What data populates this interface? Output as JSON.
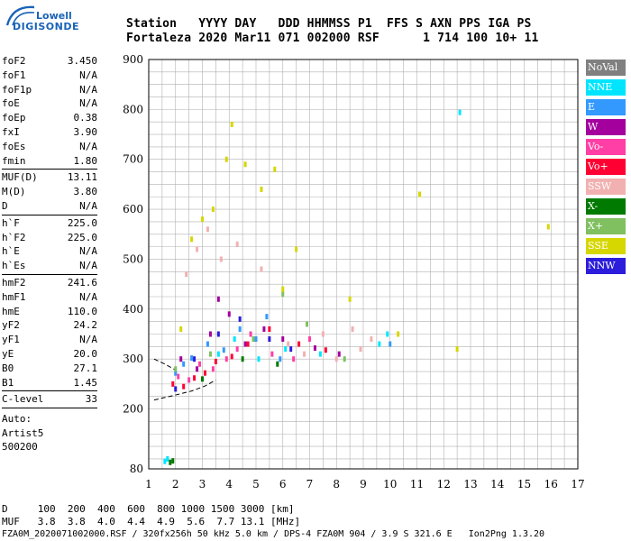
{
  "logo": {
    "line1": "Lowell",
    "line2": "DIGISONDE"
  },
  "header": {
    "line1": "Station   YYYY DAY   DDD HHMMSS P1  FFS S AXN PPS IGA PS",
    "line2": "Fortaleza 2020 Mar11 071 002000 RSF      1 714 100 10+ 11"
  },
  "params": {
    "group1": [
      {
        "name": "foF2",
        "value": "3.450"
      },
      {
        "name": "foF1",
        "value": "N/A"
      },
      {
        "name": "foF1p",
        "value": "N/A"
      },
      {
        "name": "foE",
        "value": "N/A"
      },
      {
        "name": "foEp",
        "value": "0.38"
      },
      {
        "name": "fxI",
        "value": "3.90"
      },
      {
        "name": "foEs",
        "value": "N/A"
      },
      {
        "name": "fmin",
        "value": "1.80"
      }
    ],
    "group2": [
      {
        "name": "MUF(D)",
        "value": "13.11"
      },
      {
        "name": "M(D)",
        "value": "3.80"
      },
      {
        "name": "D",
        "value": "N/A"
      }
    ],
    "group3": [
      {
        "name": "h`F",
        "value": "225.0"
      },
      {
        "name": "h`F2",
        "value": "225.0"
      },
      {
        "name": "h`E",
        "value": "N/A"
      },
      {
        "name": "h`Es",
        "value": "N/A"
      }
    ],
    "group4": [
      {
        "name": "hmF2",
        "value": "241.6"
      },
      {
        "name": "hmF1",
        "value": "N/A"
      },
      {
        "name": "hmE",
        "value": "110.0"
      },
      {
        "name": "yF2",
        "value": "24.2"
      },
      {
        "name": "yF1",
        "value": "N/A"
      },
      {
        "name": "yE",
        "value": "20.0"
      },
      {
        "name": "B0",
        "value": "27.1"
      },
      {
        "name": "B1",
        "value": "1.45"
      }
    ],
    "group5": [
      {
        "name": "C-level",
        "value": "33"
      }
    ]
  },
  "misc": {
    "auto": "Auto:",
    "artist": "Artist5",
    "code": "500200"
  },
  "legend": [
    {
      "label": "NoVal",
      "color": "#808080"
    },
    {
      "label": "NNE",
      "color": "#00e5ff"
    },
    {
      "label": "E",
      "color": "#3399ff"
    },
    {
      "label": "W",
      "color": "#a3009e"
    },
    {
      "label": "Vo-",
      "color": "#ff3fa5"
    },
    {
      "label": "Vo+",
      "color": "#ff0033"
    },
    {
      "label": "SSW",
      "color": "#f2b1b1"
    },
    {
      "label": "X-",
      "color": "#007a00"
    },
    {
      "label": "X+",
      "color": "#80c060"
    },
    {
      "label": "SSE",
      "color": "#d6d600"
    },
    {
      "label": "NNW",
      "color": "#2b1ddb"
    }
  ],
  "footer": {
    "line1": "D     100  200  400  600  800 1000 1500 3000 [km]",
    "line2": "MUF   3.8  3.8  4.0  4.4  4.9  5.6  7.7 13.1 [MHz]",
    "line3": "FZA0M_2020071002000.RSF / 320fx256h 50 kHz 5.0 km / DPS-4 FZA0M 904 / 3.9 S 321.6 E   Ion2Png 1.3.20"
  },
  "chart_data": {
    "type": "scatter",
    "xlim": [
      1,
      17
    ],
    "ylim": [
      80,
      900
    ],
    "xticks": [
      1,
      2,
      3,
      4,
      5,
      6,
      7,
      8,
      9,
      10,
      11,
      12,
      13,
      14,
      15,
      16,
      17
    ],
    "yticks": [
      80,
      200,
      300,
      400,
      500,
      600,
      700,
      800,
      900
    ],
    "grid": true,
    "legend_position": "right",
    "trace": [
      [
        1.2,
        218
      ],
      [
        2.0,
        228
      ],
      [
        2.6,
        236
      ],
      [
        3.1,
        246
      ],
      [
        3.5,
        258
      ]
    ],
    "trace_upper": [
      [
        1.2,
        300
      ],
      [
        1.6,
        290
      ],
      [
        2.0,
        278
      ]
    ],
    "series": [
      {
        "name": "NNE",
        "color": "#00e5ff",
        "points": [
          [
            1.6,
            95
          ],
          [
            1.7,
            100
          ],
          [
            3.6,
            310
          ],
          [
            4.2,
            340
          ],
          [
            5.1,
            300
          ],
          [
            6.1,
            320
          ],
          [
            7.4,
            310
          ],
          [
            9.6,
            330
          ],
          [
            9.9,
            350
          ],
          [
            12.6,
            794
          ]
        ]
      },
      {
        "name": "E",
        "color": "#3399ff",
        "points": [
          [
            2.0,
            272
          ],
          [
            2.3,
            290
          ],
          [
            2.6,
            302
          ],
          [
            3.2,
            330
          ],
          [
            3.8,
            318
          ],
          [
            4.4,
            360
          ],
          [
            5.0,
            340
          ],
          [
            5.4,
            385
          ],
          [
            5.9,
            300
          ],
          [
            10.0,
            330
          ]
        ]
      },
      {
        "name": "W",
        "color": "#a3009e",
        "points": [
          [
            2.2,
            300
          ],
          [
            2.8,
            280
          ],
          [
            3.3,
            350
          ],
          [
            3.6,
            420
          ],
          [
            4.0,
            390
          ],
          [
            4.6,
            330
          ],
          [
            5.3,
            360
          ],
          [
            6.0,
            340
          ],
          [
            7.2,
            322
          ],
          [
            8.1,
            310
          ]
        ]
      },
      {
        "name": "Vo-",
        "color": "#ff3fa5",
        "points": [
          [
            2.1,
            265
          ],
          [
            2.5,
            258
          ],
          [
            2.9,
            290
          ],
          [
            3.4,
            280
          ],
          [
            3.9,
            300
          ],
          [
            4.3,
            320
          ],
          [
            4.8,
            350
          ],
          [
            5.6,
            310
          ],
          [
            6.4,
            300
          ],
          [
            7.0,
            340
          ]
        ]
      },
      {
        "name": "Vo+",
        "color": "#ff0033",
        "points": [
          [
            1.9,
            250
          ],
          [
            2.3,
            245
          ],
          [
            2.7,
            262
          ],
          [
            3.1,
            272
          ],
          [
            3.5,
            295
          ],
          [
            4.1,
            305
          ],
          [
            4.7,
            330
          ],
          [
            5.5,
            360
          ],
          [
            6.6,
            330
          ],
          [
            7.6,
            318
          ]
        ]
      },
      {
        "name": "SSW",
        "color": "#f2b1b1",
        "points": [
          [
            2.4,
            470
          ],
          [
            2.8,
            520
          ],
          [
            3.2,
            560
          ],
          [
            3.7,
            500
          ],
          [
            4.3,
            530
          ],
          [
            5.2,
            480
          ],
          [
            6.2,
            330
          ],
          [
            6.8,
            310
          ],
          [
            7.5,
            350
          ],
          [
            8.0,
            300
          ],
          [
            8.6,
            360
          ],
          [
            8.9,
            320
          ],
          [
            9.3,
            340
          ]
        ]
      },
      {
        "name": "X-",
        "color": "#007a00",
        "points": [
          [
            1.8,
            93
          ],
          [
            1.9,
            96
          ],
          [
            3.0,
            260
          ],
          [
            4.5,
            300
          ],
          [
            5.8,
            290
          ]
        ]
      },
      {
        "name": "X+",
        "color": "#80c060",
        "points": [
          [
            2.0,
            280
          ],
          [
            3.3,
            310
          ],
          [
            4.9,
            340
          ],
          [
            6.0,
            430
          ],
          [
            6.9,
            370
          ],
          [
            8.3,
            300
          ]
        ]
      },
      {
        "name": "SSE",
        "color": "#d6d600",
        "points": [
          [
            2.2,
            360
          ],
          [
            2.6,
            540
          ],
          [
            3.0,
            580
          ],
          [
            3.4,
            600
          ],
          [
            3.9,
            700
          ],
          [
            4.1,
            770
          ],
          [
            4.6,
            690
          ],
          [
            5.2,
            640
          ],
          [
            5.7,
            680
          ],
          [
            6.0,
            440
          ],
          [
            6.5,
            520
          ],
          [
            8.5,
            420
          ],
          [
            10.3,
            350
          ],
          [
            11.1,
            630
          ],
          [
            12.5,
            320
          ],
          [
            15.9,
            565
          ]
        ]
      },
      {
        "name": "NNW",
        "color": "#2b1ddb",
        "points": [
          [
            2.0,
            240
          ],
          [
            2.7,
            300
          ],
          [
            3.6,
            350
          ],
          [
            4.4,
            380
          ],
          [
            5.5,
            340
          ],
          [
            6.3,
            320
          ]
        ]
      }
    ]
  }
}
